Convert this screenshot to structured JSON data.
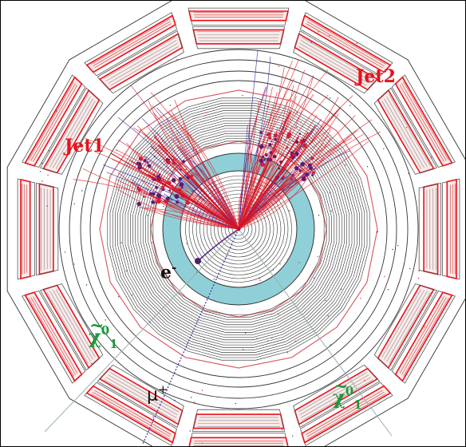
{
  "labels": {
    "jet1": "Jet1",
    "jet2": "Jet2",
    "electron": {
      "symbol": "e",
      "charge": "-"
    },
    "muon": {
      "symbol": "μ",
      "charge": "+"
    },
    "neutralino_1": {
      "symbol": "χ",
      "tilde": "~",
      "sup": "0",
      "sub": "1"
    },
    "neutralino_2": {
      "symbol": "χ",
      "tilde": "~",
      "sup": "0",
      "sub": "1"
    }
  },
  "colors": {
    "jet_label": "#e8101a",
    "neutralino_label": "#1a9a3a",
    "calorimeter": "#e8101a",
    "tracker": "#8fd0d8",
    "muon_track": "#3030a0",
    "neutralino_line": "#9ab0b0"
  }
}
